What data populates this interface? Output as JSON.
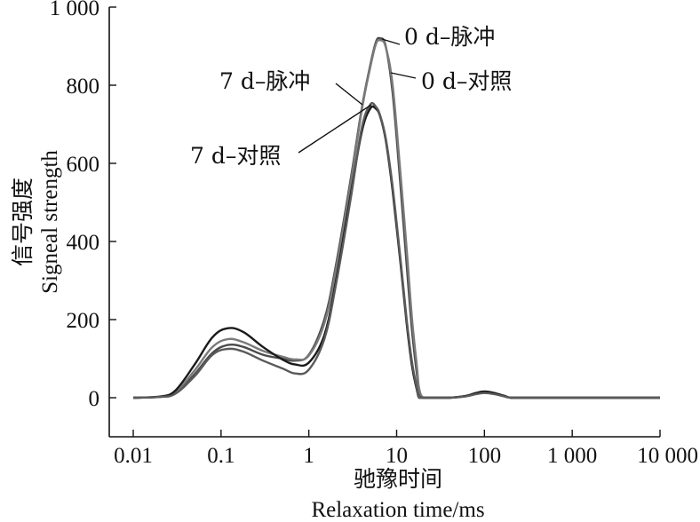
{
  "chart_data": {
    "type": "line",
    "title": "",
    "xlabel": "驰豫时间",
    "xlabel_en": "Relaxation time/ms",
    "ylabel": "信号强度",
    "ylabel_en": "Signeal strength",
    "x_scale": "log",
    "xlim": [
      0.01,
      10000
    ],
    "ylim": [
      -100,
      1000
    ],
    "x_ticks": [
      0.01,
      0.1,
      1,
      10,
      100,
      1000,
      10000
    ],
    "x_tick_labels": [
      "0.01",
      "0.1",
      "1",
      "10",
      "100",
      "1 000",
      "10 000"
    ],
    "y_ticks": [
      0,
      200,
      400,
      600,
      800,
      1000
    ],
    "y_tick_labels": [
      "0",
      "200",
      "400",
      "600",
      "800",
      "1 000"
    ],
    "grid": false,
    "legend": "none",
    "x": [
      0.01,
      0.02,
      0.03,
      0.05,
      0.08,
      0.12,
      0.18,
      0.3,
      0.5,
      0.7,
      1.0,
      1.5,
      2.0,
      3.0,
      4.0,
      5.0,
      5.8,
      6.5,
      7.5,
      9.0,
      11,
      13,
      15,
      17,
      18,
      20,
      25,
      40,
      60,
      80,
      100,
      130,
      170,
      200,
      300,
      1000,
      10000
    ],
    "series": [
      {
        "name": "0 d–脉冲",
        "color": "#4a4a4a",
        "values": [
          0,
          2,
          12,
          60,
          115,
          135,
          130,
          110,
          100,
          95,
          110,
          200,
          330,
          560,
          740,
          850,
          910,
          920,
          900,
          780,
          550,
          340,
          170,
          60,
          15,
          0,
          0,
          0,
          4,
          10,
          14,
          10,
          4,
          0,
          0,
          0,
          0
        ]
      },
      {
        "name": "0 d–对照",
        "color": "#7a7a7a",
        "values": [
          0,
          2,
          14,
          70,
          130,
          150,
          142,
          120,
          105,
          98,
          108,
          190,
          320,
          550,
          735,
          845,
          905,
          915,
          898,
          800,
          580,
          380,
          200,
          80,
          25,
          0,
          0,
          0,
          4,
          10,
          15,
          11,
          5,
          0,
          0,
          0,
          0
        ]
      },
      {
        "name": "7 d–脉冲",
        "color": "#1a1a1a",
        "values": [
          0,
          3,
          18,
          85,
          155,
          178,
          168,
          130,
          98,
          85,
          90,
          160,
          290,
          520,
          680,
          740,
          740,
          720,
          660,
          530,
          350,
          190,
          80,
          20,
          0,
          0,
          0,
          0,
          4,
          12,
          16,
          12,
          4,
          0,
          0,
          0,
          0
        ]
      },
      {
        "name": "7 d–对照",
        "color": "#5a5a5a",
        "values": [
          0,
          2,
          10,
          55,
          110,
          125,
          118,
          95,
          75,
          62,
          72,
          150,
          280,
          510,
          690,
          750,
          745,
          722,
          665,
          540,
          360,
          200,
          90,
          25,
          0,
          0,
          0,
          0,
          3,
          9,
          12,
          9,
          3,
          0,
          0,
          0,
          0
        ]
      }
    ],
    "annotations": [
      "0 d–脉冲",
      "0 d–对照",
      "7 d–脉冲",
      "7 d–对照"
    ]
  }
}
